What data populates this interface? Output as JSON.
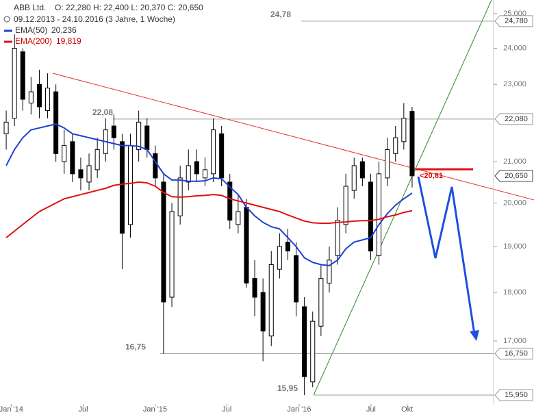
{
  "chart_data": {
    "type": "candlestick",
    "title": "ABB Ltd.",
    "ohlc": "O: 22,280  H: 22,400  L: 20,370  C: 20,650",
    "period": "09.12.2013 - 24.10.2016 (3 Jahre, 1 Woche)",
    "open": [
      21700,
      22100,
      23900,
      22500,
      23000,
      22300,
      22800,
      21000,
      21500,
      20800,
      20500,
      20800,
      21200,
      21900,
      21500,
      19500,
      21300,
      21900,
      21200,
      20500,
      17900,
      19700,
      20500,
      21000,
      20600,
      20700,
      21700,
      20500,
      19500,
      19900,
      18300,
      18000,
      17100,
      18500,
      19100,
      18800,
      17700,
      16200,
      17300,
      18200,
      18800,
      19500,
      20300,
      21000,
      20500,
      18800,
      20600,
      21200,
      21500,
      22280
    ],
    "high": [
      22300,
      24400,
      24000,
      23200,
      23400,
      23300,
      23000,
      21800,
      21700,
      21100,
      21200,
      21600,
      22100,
      22200,
      21700,
      21700,
      22300,
      22100,
      21400,
      20700,
      20000,
      20900,
      21300,
      21300,
      21100,
      22100,
      21900,
      20700,
      20200,
      20100,
      18700,
      18300,
      18900,
      19300,
      19400,
      19100,
      17900,
      17600,
      18600,
      19000,
      19900,
      20700,
      21100,
      21100,
      20700,
      21000,
      21600,
      21900,
      22500,
      22400
    ],
    "low": [
      21300,
      21900,
      22300,
      22200,
      22100,
      22100,
      21000,
      20700,
      20500,
      20300,
      20300,
      20600,
      21000,
      21300,
      18500,
      19200,
      21000,
      21100,
      20400,
      16750,
      17700,
      19500,
      20300,
      20500,
      20400,
      20500,
      20400,
      19400,
      19300,
      18100,
      17500,
      16600,
      16900,
      18300,
      18700,
      17500,
      15950,
      16100,
      17100,
      18000,
      18600,
      19300,
      20100,
      20400,
      18700,
      18600,
      20400,
      21000,
      21300,
      20370
    ],
    "close": [
      22000,
      24000,
      22600,
      22800,
      22400,
      22900,
      21200,
      21400,
      20700,
      20600,
      20900,
      21300,
      21800,
      21600,
      19300,
      21400,
      22000,
      21300,
      20600,
      17800,
      19800,
      20600,
      20900,
      20700,
      20800,
      21800,
      20600,
      19600,
      19800,
      18200,
      17900,
      17200,
      18600,
      19000,
      18900,
      17800,
      16300,
      17400,
      18300,
      18700,
      19600,
      20400,
      20900,
      20600,
      18900,
      20700,
      21300,
      21600,
      22100,
      20650
    ],
    "series": [
      {
        "name": "EMA(50)",
        "value_label": "20,236",
        "color": "#1f3fd6",
        "values": [
          20900,
          21300,
          21600,
          21800,
          21850,
          21900,
          21950,
          21850,
          21700,
          21650,
          21600,
          21550,
          21500,
          21450,
          21400,
          21400,
          21380,
          21300,
          21000,
          20700,
          20550,
          20550,
          20520,
          20520,
          20530,
          20600,
          20580,
          20380,
          20200,
          19900,
          19700,
          19550,
          19450,
          19400,
          19200,
          19000,
          18750,
          18650,
          18600,
          18580,
          18700,
          18950,
          19100,
          19150,
          19200,
          19500,
          19750,
          19950,
          20100,
          20236
        ]
      },
      {
        "name": "EMA(200)",
        "value_label": "19,819",
        "color": "#e01010",
        "values": [
          19200,
          19350,
          19500,
          19650,
          19800,
          19900,
          20000,
          20100,
          20150,
          20200,
          20250,
          20300,
          20350,
          20420,
          20450,
          20470,
          20500,
          20480,
          20400,
          20250,
          20150,
          20140,
          20150,
          20170,
          20180,
          20200,
          20180,
          20100,
          20050,
          20000,
          19950,
          19900,
          19850,
          19800,
          19720,
          19650,
          19580,
          19540,
          19530,
          19530,
          19550,
          19560,
          19580,
          19590,
          19590,
          19620,
          19680,
          19720,
          19780,
          19819
        ]
      }
    ],
    "xlim": [
      0,
      150
    ],
    "xticks": [
      {
        "value": 3.3,
        "label": "Jan '14"
      },
      {
        "value": 29.4,
        "label": "Jul"
      },
      {
        "value": 55.4,
        "label": "Jan '15"
      },
      {
        "value": 81.4,
        "label": "Jul"
      },
      {
        "value": 107.6,
        "label": "Jan '16"
      },
      {
        "value": 133.6,
        "label": "Jul"
      },
      {
        "value": 146.7,
        "label": "Okt"
      }
    ],
    "ylim": [
      15784,
      25404
    ],
    "log_scale": true,
    "grid": false,
    "yticks": [
      {
        "value": 17000,
        "label": "17,000"
      },
      {
        "value": 18000,
        "label": "18,000"
      },
      {
        "value": 19000,
        "label": "19,000"
      },
      {
        "value": 20000,
        "label": "20,000"
      },
      {
        "value": 21000,
        "label": "21,000"
      },
      {
        "value": 23000,
        "label": "23,000"
      },
      {
        "value": 24000,
        "label": "24,000"
      },
      {
        "value": 25000,
        "label": "25,000"
      }
    ],
    "levels": [
      {
        "value": 24780,
        "label": "24,78",
        "badge": "24,780"
      },
      {
        "value": 22080,
        "label": "22,08",
        "badge": "22,080"
      },
      {
        "value": 16750,
        "label": "16,75",
        "badge": "16,750"
      },
      {
        "value": 15950,
        "label": "15,95",
        "badge": "15,950"
      }
    ],
    "last_price": {
      "value": 20650,
      "label": "20,650"
    },
    "target": {
      "value": 20810,
      "label": "<20,81"
    }
  }
}
